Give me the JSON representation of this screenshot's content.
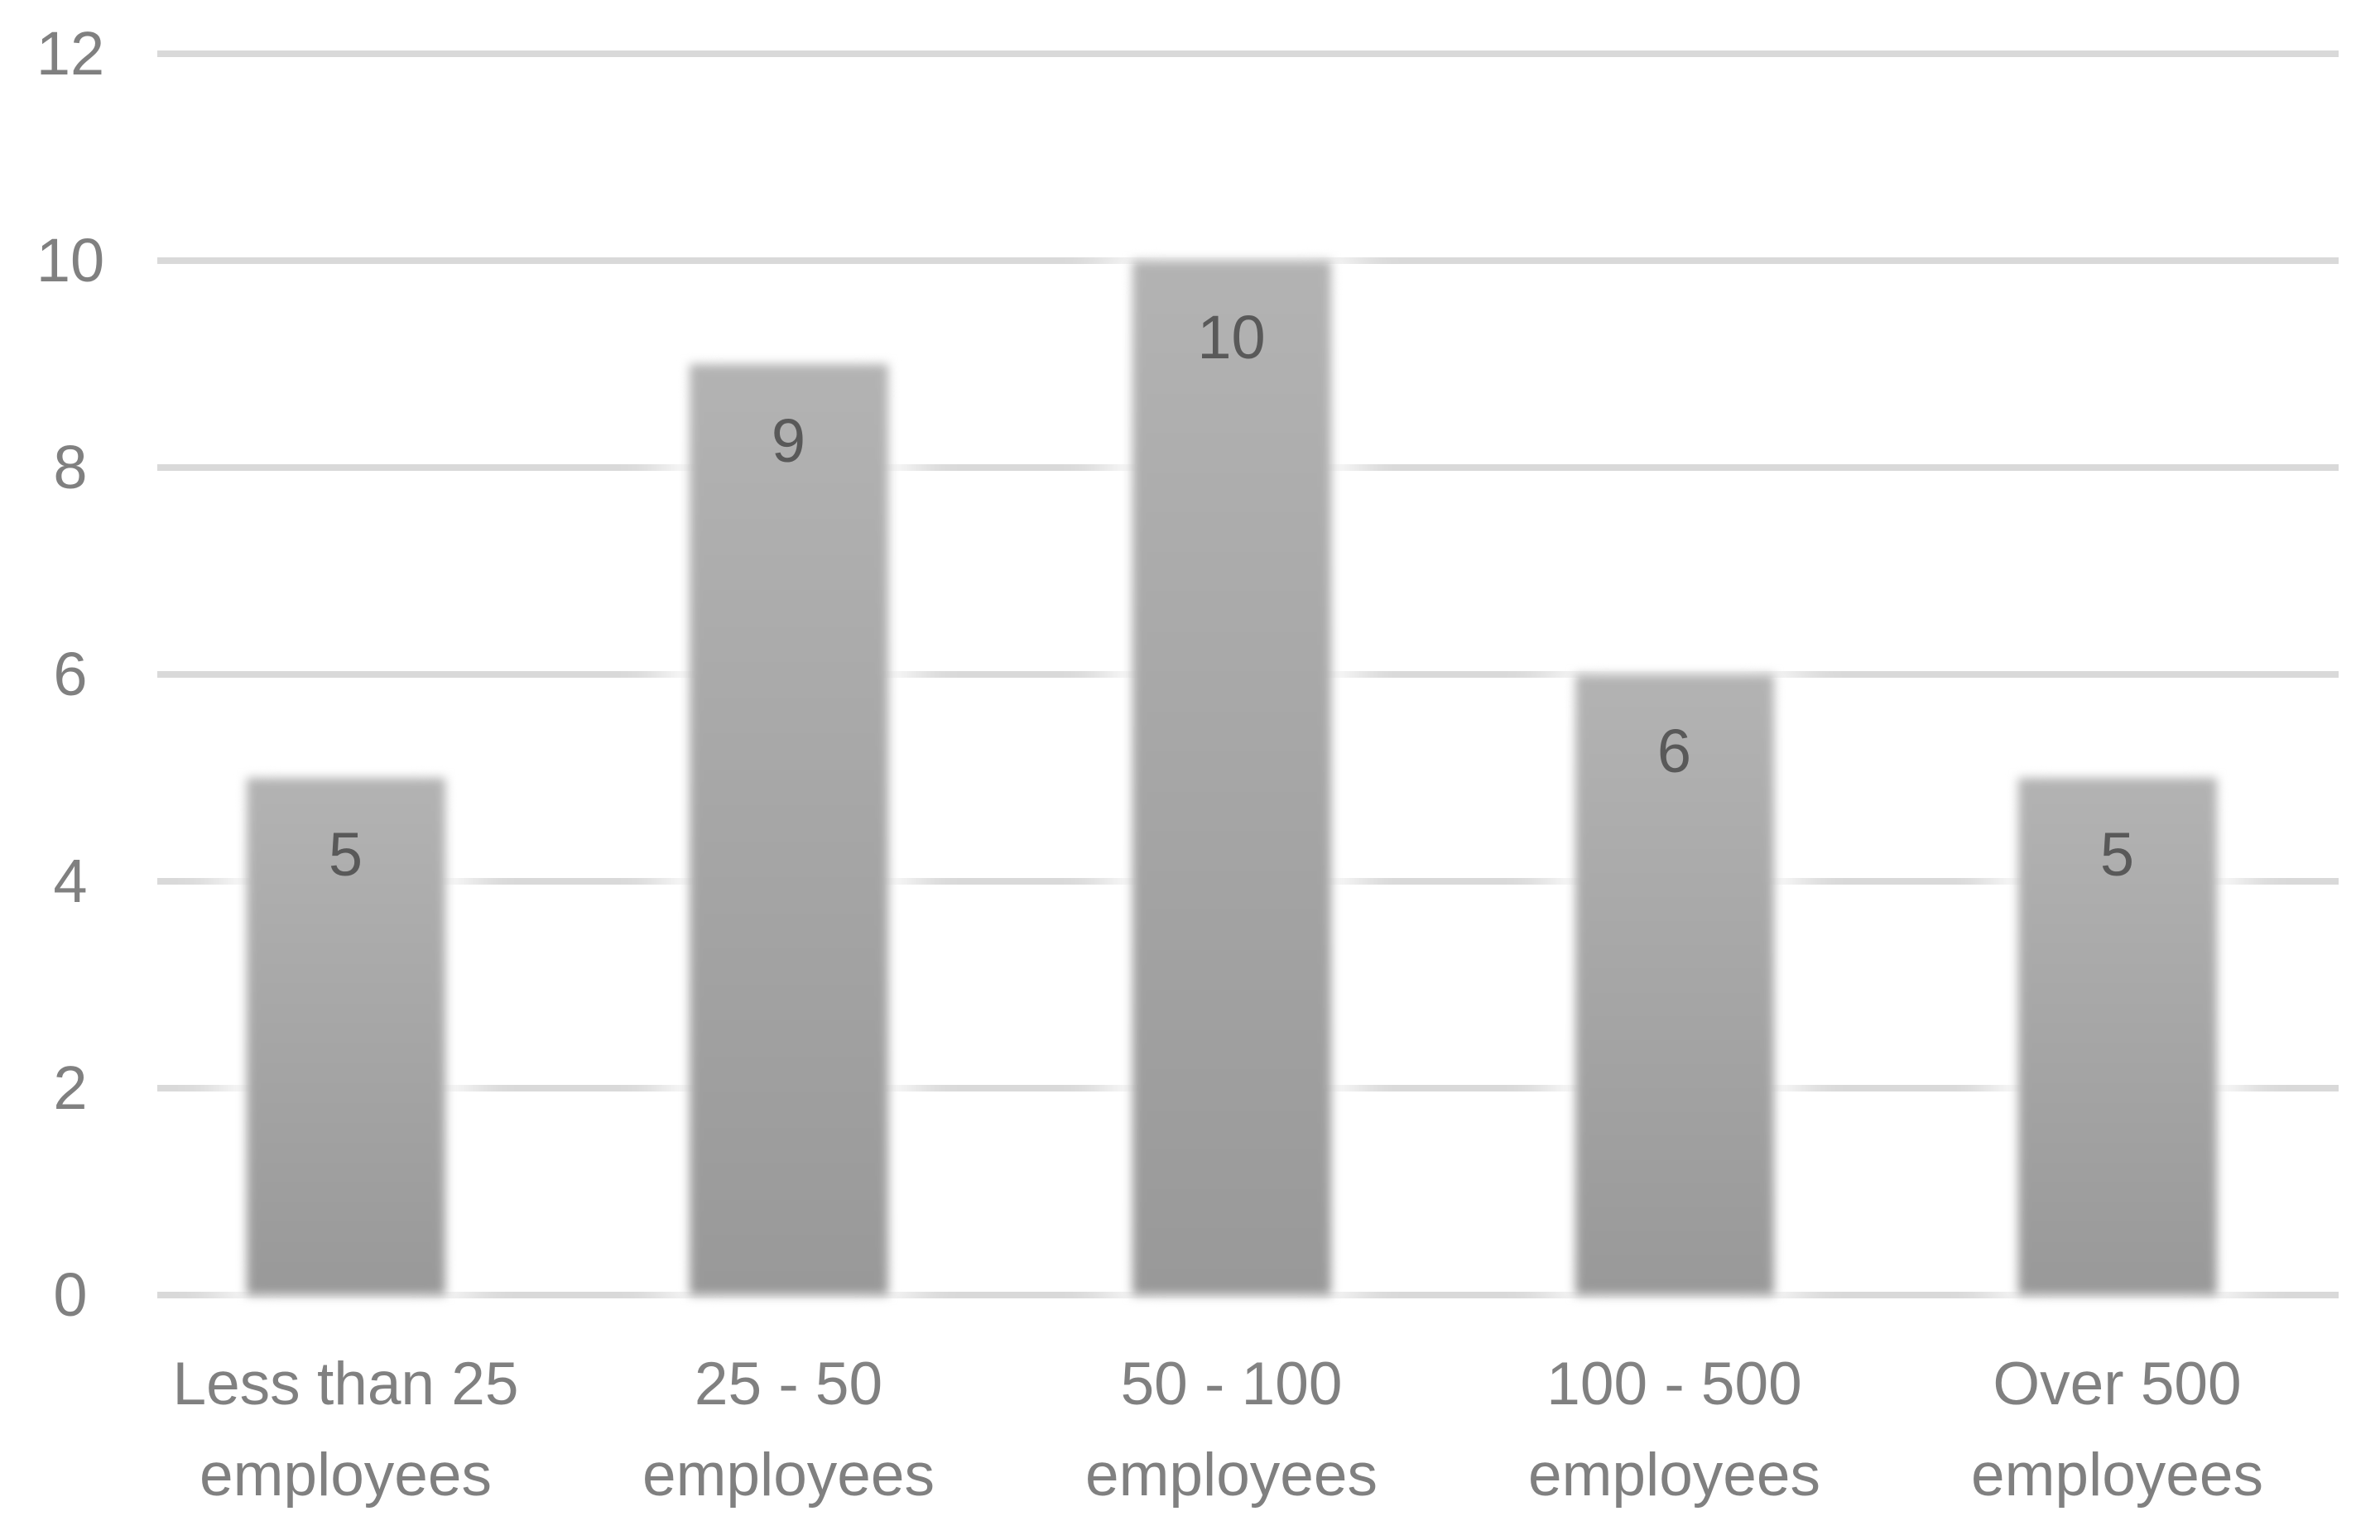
{
  "chart_data": {
    "type": "bar",
    "title": "",
    "xlabel": "",
    "ylabel": "",
    "categories": [
      "Less than 25 employees",
      "25 - 50 employees",
      "50 - 100 employees",
      "100 - 500 employees",
      "Over 500 employees"
    ],
    "category_lines": [
      [
        "Less than 25",
        "employees"
      ],
      [
        "25 - 50",
        "employees"
      ],
      [
        "50 - 100",
        "employees"
      ],
      [
        "100 - 500",
        "employees"
      ],
      [
        "Over 500",
        "employees"
      ]
    ],
    "values": [
      5,
      9,
      10,
      6,
      5
    ],
    "data_labels": [
      "5",
      "9",
      "10",
      "6",
      "5"
    ],
    "ylim": [
      0,
      12
    ],
    "yticks": [
      12,
      10,
      8,
      6,
      4,
      2,
      0
    ],
    "grid": true,
    "legend": "none",
    "colors": {
      "bar_fill_top": "#b3b3b3",
      "bar_fill_bottom": "#999999",
      "data_label": "#595959",
      "axis_text": "#808080",
      "gridline": "#d9d9d9",
      "background": "#ffffff"
    }
  }
}
